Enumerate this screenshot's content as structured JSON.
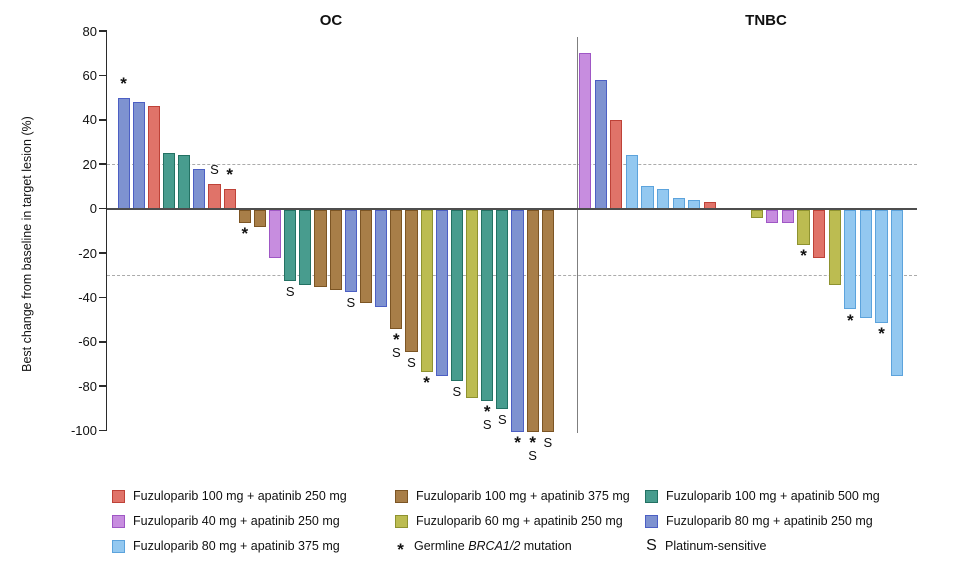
{
  "chart_data": {
    "type": "bar",
    "subtype": "waterfall",
    "ylabel": "Best change from baseline in target lesion (%)",
    "ylim": [
      -100,
      80
    ],
    "yticks": [
      80,
      60,
      40,
      20,
      0,
      -20,
      -40,
      -60,
      -80,
      -100
    ],
    "grid": "off",
    "legend_position": "bottom",
    "reference_lines": [
      {
        "y": 20,
        "style": "dashed"
      },
      {
        "y": -30,
        "style": "dashed"
      }
    ],
    "series": {
      "f100a250": {
        "label": "Fuzuloparib 100 mg + apatinib 250 mg",
        "fill": "#E07369",
        "border": "#BE4238"
      },
      "f40a250": {
        "label": "Fuzuloparib 40 mg + apatinib 250 mg",
        "fill": "#C78DDF",
        "border": "#9F57C5"
      },
      "f80a375": {
        "label": "Fuzuloparib 80 mg + apatinib 375 mg",
        "fill": "#93C8F0",
        "border": "#5CA3DC"
      },
      "f100a375": {
        "label": "Fuzuloparib 100 mg + apatinib 375 mg",
        "fill": "#A87E48",
        "border": "#7C5524"
      },
      "f60a250": {
        "label": "Fuzuloparib 60 mg + apatinib 250 mg",
        "fill": "#BCBC51",
        "border": "#8E9230"
      },
      "f100a500": {
        "label": "Fuzuloparib 100 mg + apatinib 500 mg",
        "fill": "#489C8E",
        "border": "#237163"
      },
      "f80a250": {
        "label": "Fuzuloparib 80 mg + apatinib 250 mg",
        "fill": "#7E92D0",
        "border": "#4C5FC4"
      }
    },
    "panels": [
      {
        "title": "OC",
        "bars": [
          {
            "value": 50,
            "series": "f80a250",
            "marks": [
              "*"
            ]
          },
          {
            "value": 48,
            "series": "f80a250"
          },
          {
            "value": 46,
            "series": "f100a250"
          },
          {
            "value": 25,
            "series": "f100a500"
          },
          {
            "value": 24,
            "series": "f100a500"
          },
          {
            "value": 18,
            "series": "f80a250"
          },
          {
            "value": 11,
            "series": "f100a250",
            "marks": [
              "S"
            ]
          },
          {
            "value": 9,
            "series": "f100a250",
            "marks": [
              "*"
            ]
          },
          {
            "value": -6,
            "series": "f100a375",
            "marks": [
              "*"
            ]
          },
          {
            "value": -8,
            "series": "f100a375"
          },
          {
            "value": -22,
            "series": "f40a250"
          },
          {
            "value": -32,
            "series": "f100a500",
            "marks": [
              "S"
            ]
          },
          {
            "value": -34,
            "series": "f100a500"
          },
          {
            "value": -35,
            "series": "f100a375"
          },
          {
            "value": -36,
            "series": "f100a375"
          },
          {
            "value": -37,
            "series": "f80a250",
            "marks": [
              "S"
            ]
          },
          {
            "value": -42,
            "series": "f100a375"
          },
          {
            "value": -44,
            "series": "f80a250"
          },
          {
            "value": -54,
            "series": "f100a375",
            "marks": [
              "*",
              "S"
            ]
          },
          {
            "value": -64,
            "series": "f100a375",
            "marks": [
              "S"
            ]
          },
          {
            "value": -73,
            "series": "f60a250",
            "marks": [
              "*"
            ]
          },
          {
            "value": -75,
            "series": "f80a250"
          },
          {
            "value": -77,
            "series": "f100a500",
            "marks": [
              "S"
            ]
          },
          {
            "value": -85,
            "series": "f60a250"
          },
          {
            "value": -86,
            "series": "f100a500",
            "marks": [
              "*",
              "S"
            ]
          },
          {
            "value": -90,
            "series": "f100a500",
            "marks": [
              "S"
            ]
          },
          {
            "value": -100,
            "series": "f80a250",
            "marks": [
              "*"
            ]
          },
          {
            "value": -100,
            "series": "f100a375",
            "marks": [
              "*",
              "S"
            ]
          },
          {
            "value": -100,
            "series": "f100a375",
            "marks": [
              "S"
            ]
          }
        ]
      },
      {
        "title": "TNBC",
        "bars": [
          {
            "value": 70,
            "series": "f40a250"
          },
          {
            "value": 58,
            "series": "f80a250"
          },
          {
            "value": 40,
            "series": "f100a250"
          },
          {
            "value": 24,
            "series": "f80a375"
          },
          {
            "value": 10,
            "series": "f80a375"
          },
          {
            "value": 9,
            "series": "f80a375"
          },
          {
            "value": 5,
            "series": "f80a375"
          },
          {
            "value": 4,
            "series": "f80a375"
          },
          {
            "value": 3,
            "series": "f100a250"
          },
          {
            "value": 0
          },
          {
            "value": 0
          },
          {
            "value": -4,
            "series": "f60a250"
          },
          {
            "value": -6,
            "series": "f40a250"
          },
          {
            "value": -6,
            "series": "f40a250"
          },
          {
            "value": -16,
            "series": "f60a250",
            "marks": [
              "*"
            ]
          },
          {
            "value": -22,
            "series": "f100a250"
          },
          {
            "value": -34,
            "series": "f60a250"
          },
          {
            "value": -45,
            "series": "f80a375",
            "marks": [
              "*"
            ]
          },
          {
            "value": -49,
            "series": "f80a375"
          },
          {
            "value": -51,
            "series": "f80a375",
            "marks": [
              "*"
            ]
          },
          {
            "value": -75,
            "series": "f80a375"
          }
        ]
      }
    ],
    "marker_legend": [
      {
        "symbol": "*",
        "label_parts": [
          {
            "text": "Germline "
          },
          {
            "text": "BRCA1/2",
            "italic": true
          },
          {
            "text": " mutation"
          }
        ]
      },
      {
        "symbol": "S",
        "label_parts": [
          {
            "text": "Platinum-sensitive"
          }
        ]
      }
    ]
  },
  "legend": {
    "columns": [
      {
        "items": [
          {
            "series": "f100a250"
          },
          {
            "series": "f40a250"
          },
          {
            "series": "f80a375"
          }
        ]
      },
      {
        "items": [
          {
            "series": "f100a375"
          },
          {
            "series": "f60a250"
          },
          {
            "symbol": "*"
          }
        ]
      },
      {
        "items": [
          {
            "series": "f100a500"
          },
          {
            "series": "f80a250"
          },
          {
            "symbol": "S"
          }
        ]
      }
    ]
  }
}
